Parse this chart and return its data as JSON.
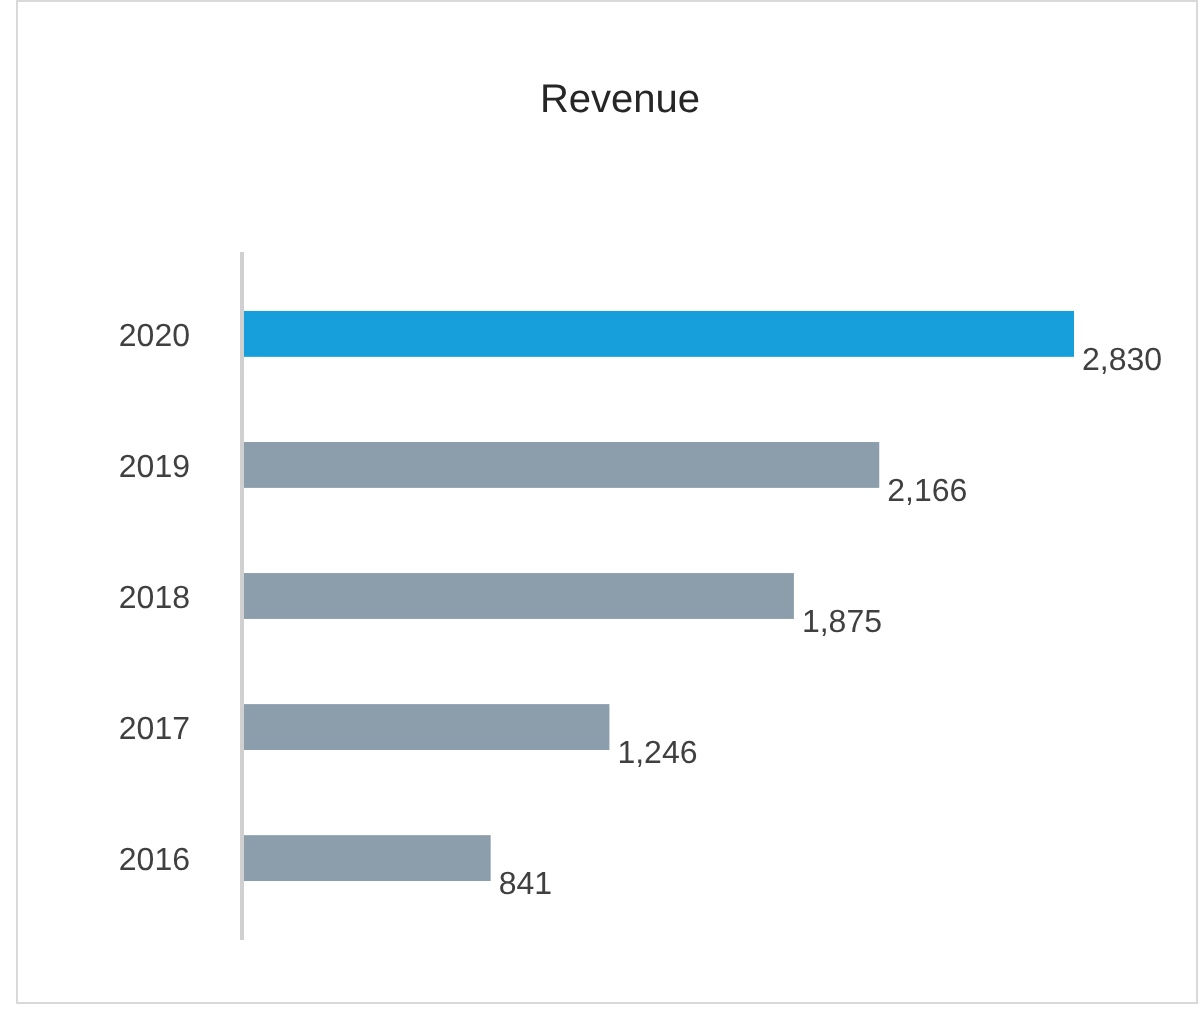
{
  "chart_data": {
    "type": "bar",
    "orientation": "horizontal",
    "title": "Revenue",
    "categories": [
      "2020",
      "2019",
      "2018",
      "2017",
      "2016"
    ],
    "values": [
      2830,
      2166,
      1875,
      1246,
      841
    ],
    "value_labels": [
      "2,830",
      "2,166",
      "1,875",
      "1,246",
      "841"
    ],
    "colors": [
      "#169fdb",
      "#8c9eab",
      "#8c9eab",
      "#8c9eab",
      "#8c9eab"
    ]
  }
}
